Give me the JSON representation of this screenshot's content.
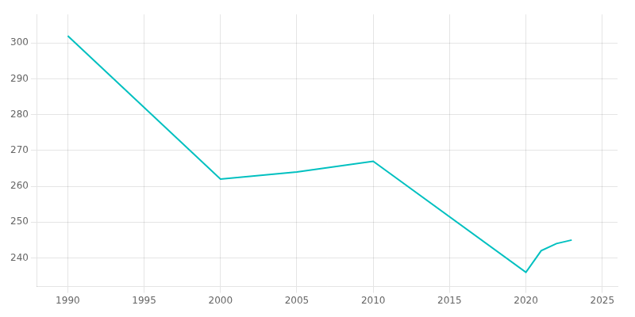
{
  "chart_data": {
    "type": "line",
    "x": [
      1990,
      2000,
      2005,
      2010,
      2020,
      2021,
      2022,
      2023
    ],
    "values": [
      302,
      262,
      264,
      267,
      236,
      242,
      244,
      245
    ],
    "color": "#00C0C0",
    "xlim": [
      1988,
      2026
    ],
    "xticks": [
      1990,
      1995,
      2000,
      2005,
      2010,
      2015,
      2020,
      2025
    ],
    "ylim": [
      232,
      308
    ],
    "yticks": [
      240,
      250,
      260,
      270,
      280,
      290,
      300
    ],
    "grid": true
  }
}
